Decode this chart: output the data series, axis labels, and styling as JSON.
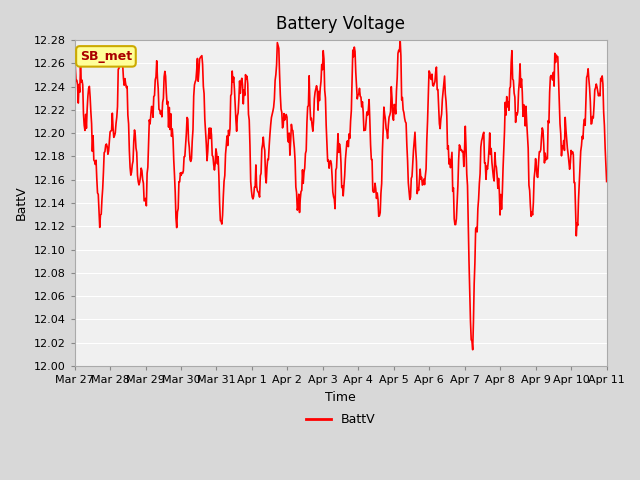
{
  "title": "Battery Voltage",
  "xlabel": "Time",
  "ylabel": "BattV",
  "ylim": [
    12.0,
    12.28
  ],
  "yticks": [
    12.0,
    12.02,
    12.04,
    12.06,
    12.08,
    12.1,
    12.12,
    12.14,
    12.16,
    12.18,
    12.2,
    12.22,
    12.24,
    12.26,
    12.28
  ],
  "xtick_labels": [
    "Mar 27",
    "Mar 28",
    "Mar 29",
    "Mar 30",
    "Mar 31",
    "Apr 1",
    "Apr 2",
    "Apr 3",
    "Apr 4",
    "Apr 5",
    "Apr 6",
    "Apr 7",
    "Apr 8",
    "Apr 9",
    "Apr 10",
    "Apr 11"
  ],
  "n_ticks": 16,
  "line_color": "#ff0000",
  "line_width": 1.2,
  "fig_bg_color": "#d8d8d8",
  "plot_bg_color": "#f0f0f0",
  "legend_label": "BattV",
  "annotation_text": "SB_met",
  "annotation_bg": "#ffff99",
  "annotation_border": "#ccaa00",
  "annotation_text_color": "#aa0000",
  "n_days": 15,
  "pts_per_day": 48
}
